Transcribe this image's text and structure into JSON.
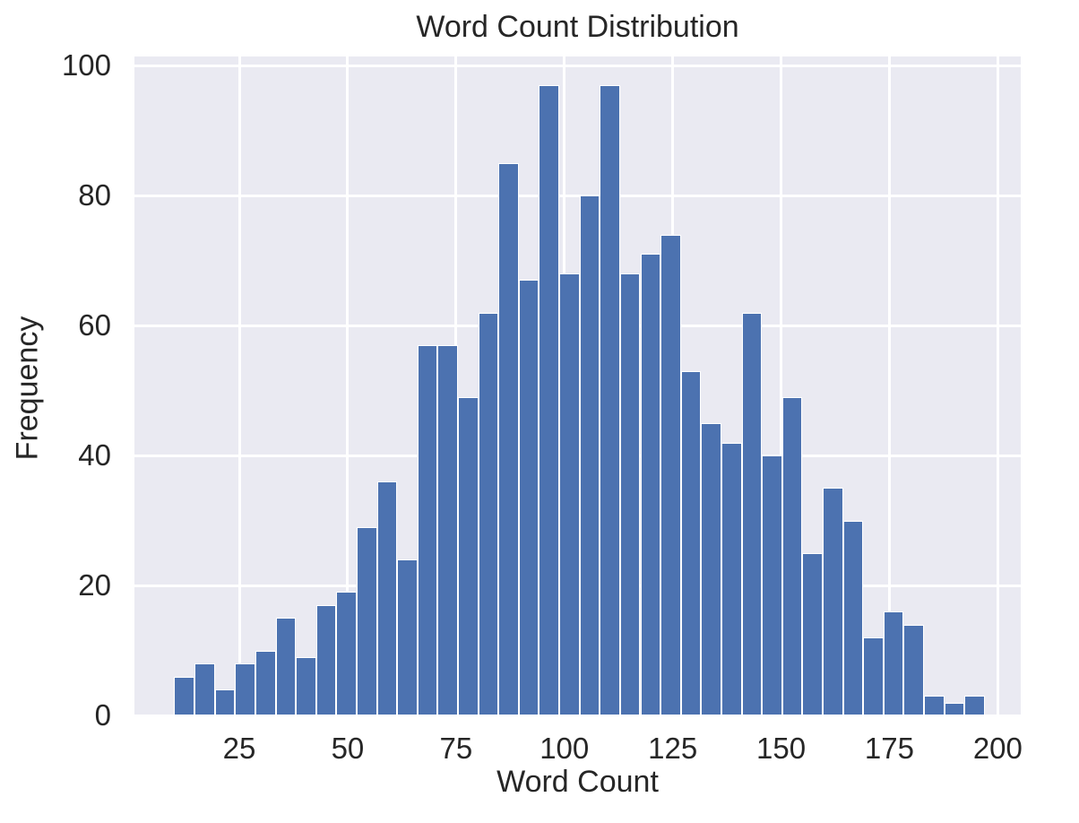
{
  "chart_data": {
    "type": "bar",
    "subtype": "histogram",
    "title": "Word Count Distribution",
    "xlabel": "Word Count",
    "ylabel": "Frequency",
    "bins": {
      "start": 10,
      "width": 4.675,
      "count": 40
    },
    "values": [
      6,
      8,
      4,
      8,
      10,
      15,
      9,
      17,
      19,
      29,
      36,
      24,
      57,
      57,
      49,
      62,
      85,
      67,
      97,
      68,
      80,
      97,
      68,
      71,
      74,
      53,
      45,
      42,
      62,
      40,
      49,
      25,
      35,
      30,
      12,
      16,
      14,
      3,
      2,
      3
    ],
    "xticks": [
      25,
      50,
      75,
      100,
      125,
      150,
      175,
      200
    ],
    "yticks": [
      0,
      20,
      40,
      60,
      80,
      100
    ],
    "xlim": [
      0.8,
      205.3
    ],
    "ylim": [
      0,
      101.4
    ],
    "grid": true,
    "legend": false,
    "colors": {
      "bar": "#4c72b0",
      "bar_edge": "#ffffff",
      "plot_bg": "#eaeaf2",
      "grid": "#ffffff",
      "text": "#262626",
      "figure_bg": "#ffffff"
    }
  }
}
